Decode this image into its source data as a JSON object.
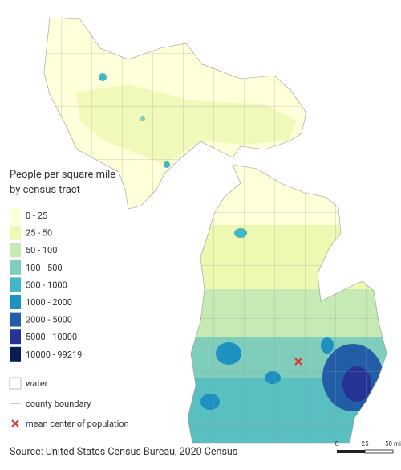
{
  "legend": {
    "title_lines": [
      "People per square mile",
      "by census tract"
    ],
    "items": [
      {
        "label": "0 - 25",
        "color": "#ffffd9"
      },
      {
        "label": "25 - 50",
        "color": "#edf8b1"
      },
      {
        "label": "50 - 100",
        "color": "#c7e9b4"
      },
      {
        "label": "100 - 500",
        "color": "#7fcdbb"
      },
      {
        "label": "500 - 1000",
        "color": "#41b6c4"
      },
      {
        "label": "1000 - 2000",
        "color": "#1d91c0"
      },
      {
        "label": "2000 - 5000",
        "color": "#225ea8"
      },
      {
        "label": "5000 - 10000",
        "color": "#253494"
      },
      {
        "label": "10000 - 99219",
        "color": "#081d58"
      }
    ],
    "water": "water",
    "county_boundary": "county boundary",
    "mean_center": "mean center of population"
  },
  "source": "Source: United States Census Bureau, 2020 Census",
  "scale_bar": {
    "labels": [
      "0",
      "25",
      "50 mi"
    ]
  }
}
